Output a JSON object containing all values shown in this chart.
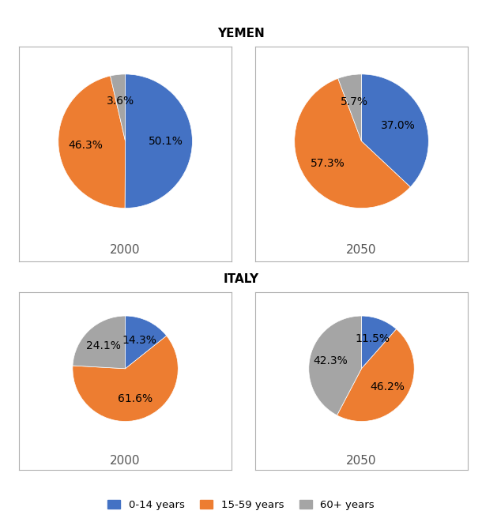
{
  "title_yemen": "YEMEN",
  "title_italy": "ITALY",
  "yemen_2000": {
    "values": [
      50.1,
      46.3,
      3.6
    ],
    "labels": [
      "50.1%",
      "46.3%",
      "3.6%"
    ],
    "colors": [
      "#4472c4",
      "#ed7d31",
      "#a5a5a5"
    ],
    "year": "2000"
  },
  "yemen_2050": {
    "values": [
      37.0,
      57.3,
      5.7
    ],
    "labels": [
      "37.0%",
      "57.3%",
      "5.7%"
    ],
    "colors": [
      "#4472c4",
      "#ed7d31",
      "#a5a5a5"
    ],
    "year": "2050"
  },
  "italy_2000": {
    "values": [
      14.3,
      61.6,
      24.1
    ],
    "labels": [
      "14.3%",
      "61.6%",
      "24.1%"
    ],
    "colors": [
      "#4472c4",
      "#ed7d31",
      "#a5a5a5"
    ],
    "year": "2000"
  },
  "italy_2050": {
    "values": [
      11.5,
      46.2,
      42.3
    ],
    "labels": [
      "11.5%",
      "46.2%",
      "42.3%"
    ],
    "colors": [
      "#4472c4",
      "#ed7d31",
      "#a5a5a5"
    ],
    "year": "2050"
  },
  "legend_labels": [
    "0-14 years",
    "15-59 years",
    "60+ years"
  ],
  "legend_colors": [
    "#4472c4",
    "#ed7d31",
    "#a5a5a5"
  ],
  "label_fontsize": 10,
  "year_fontsize": 11,
  "title_fontsize": 11,
  "box_color": "#c0c0c0"
}
